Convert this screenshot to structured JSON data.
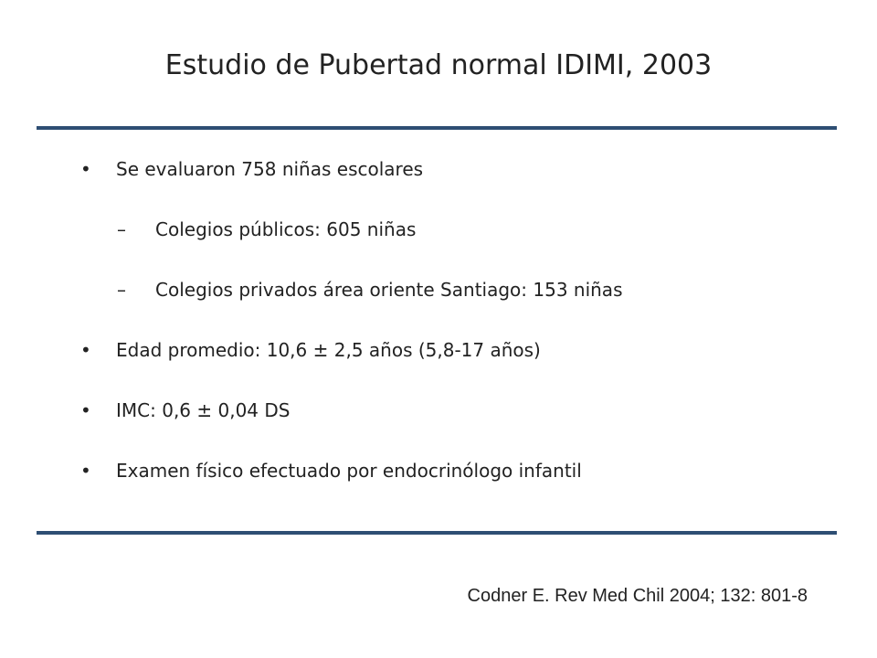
{
  "title": "Estudio de Pubertad normal IDIMI, 2003",
  "bullets": [
    {
      "text": "Se evaluaron 758 niñas escolares",
      "level": 1
    },
    {
      "text": "Colegios públicos: 605 niñas",
      "level": 2
    },
    {
      "text": "Colegios privados área oriente Santiago: 153 niñas",
      "level": 2
    },
    {
      "text": "Edad promedio: 10,6 ± 2,5 años (5,8-17 años)",
      "level": 1
    },
    {
      "text": "IMC: 0,6 ± 0,04 DS",
      "level": 1
    },
    {
      "text": "Examen físico efectuado por endocrinólogo infantil",
      "level": 1
    }
  ],
  "citation": "Codner E. Rev Med Chil 2004; 132: 801-8"
}
